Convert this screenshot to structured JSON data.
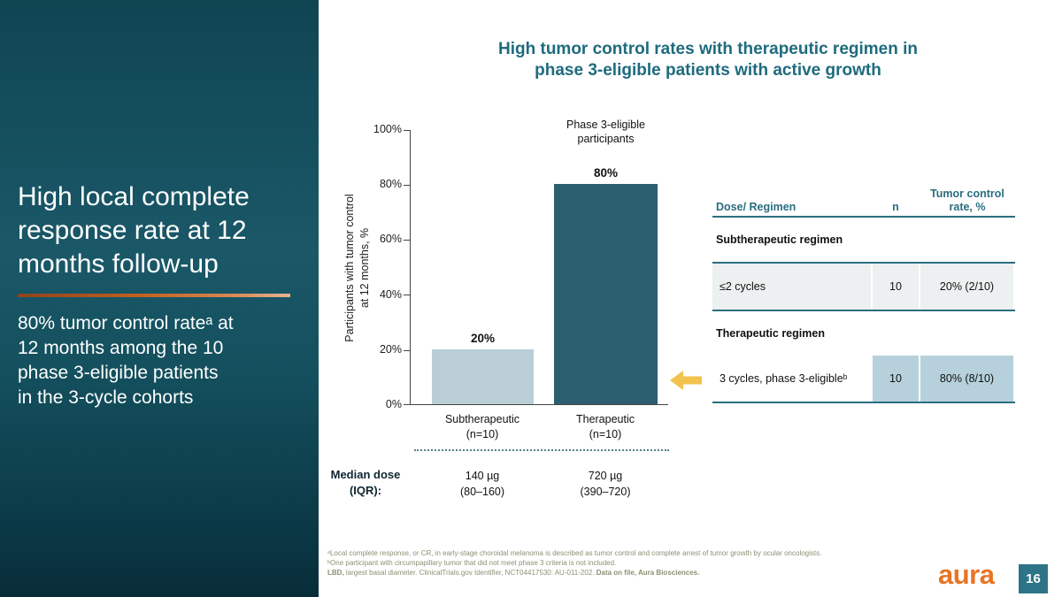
{
  "colors": {
    "sidebar_teal": "#14505e",
    "accent_teal": "#2a6e80",
    "accent_orange": "#e87425",
    "highlight_blue": "#b6d1db",
    "row_gray": "#edf0f0",
    "arrow_yellow": "#f2c24e"
  },
  "sidebar": {
    "title": "High local complete\nresponse rate at 12\nmonths follow-up",
    "subtitle": "80% tumor control rateᵃ at\n12 months among the 10\nphase 3-eligible patients\nin the 3-cycle cohorts"
  },
  "main": {
    "title": "High tumor control rates with therapeutic regimen in\nphase 3-eligible patients with active growth"
  },
  "chart_data": {
    "type": "bar",
    "title": "",
    "categories": [
      "Subtherapeutic\n(n=10)",
      "Therapeutic\n(n=10)"
    ],
    "values": [
      20,
      80
    ],
    "value_labels": [
      "20%",
      "80%"
    ],
    "bar_colors": [
      "#b9ced5",
      "#2b5f6f"
    ],
    "xlabel": "",
    "ylabel": "Participants with tumor control\nat 12 months, %",
    "ylim": [
      0,
      100
    ],
    "yticks": [
      "100%",
      "80%",
      "60%",
      "40%",
      "20%",
      "0%"
    ],
    "grid": false,
    "legend": null,
    "annotation": "Phase 3-eligible\nparticipants",
    "median_dose_label": "Median dose\n(IQR):",
    "median_doses": [
      "140 µg\n(80–160)",
      "720 µg\n(390–720)"
    ]
  },
  "table": {
    "headers": {
      "regimen": "Dose/ Regimen",
      "n": "n",
      "rate": "Tumor control\nrate, %"
    },
    "sections": [
      {
        "title": "Subtherapeutic regimen",
        "rows": [
          {
            "regimen": "≤2 cycles",
            "n": "10",
            "rate": "20% (2/10)"
          }
        ]
      },
      {
        "title": "Therapeutic regimen",
        "rows": [
          {
            "regimen": "3 cycles, phase 3-eligibleᵇ",
            "n": "10",
            "rate": "80% (8/10)"
          }
        ]
      }
    ]
  },
  "footnotes": {
    "line1": "ᵃLocal complete response, or CR, in early-stage choroidal melanoma is described as tumor control and complete arrest of tumor growth by ocular oncologists.",
    "line2": "ᵇOne participant with circumpapillary tumor that did not meet phase 3 criteria is not included.",
    "line3_bold1": "LBD,",
    "line3_text": " largest basal diameter. ClinicalTrials.gov Identifier, NCT04417530: AU-011-202. ",
    "line3_bold2": "Data on file, Aura Biosciences."
  },
  "footer": {
    "logo": "aura",
    "page_number": "16"
  }
}
